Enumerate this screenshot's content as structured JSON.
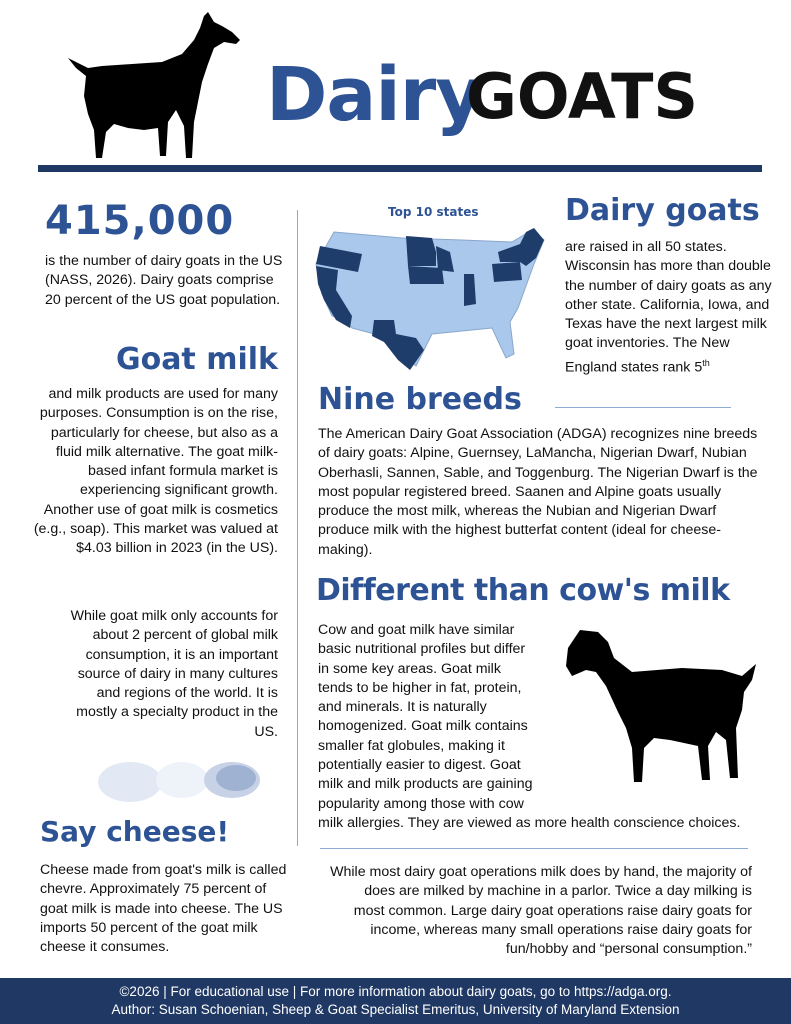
{
  "header": {
    "title_part1": "Dairy",
    "title_part2": "GOATS"
  },
  "stat": {
    "number": "415,000",
    "text": "is the number of dairy goats in the US (NASS, 2026). Dairy goats comprise 20 percent of the US goat population."
  },
  "goat_milk": {
    "heading": "Goat milk",
    "p1": "and milk products are used for many purposes. Consumption is on the rise, particularly for cheese, but also as a fluid milk alternative. The goat milk-based infant formula market is experiencing significant growth.  Another use of goat milk is cosmetics (e.g., soap). This market was valued at $4.03 billion in 2023 (in the US).",
    "p2": "While goat milk only accounts for about 2 percent of global milk consumption, it is an important source of dairy in many cultures and regions of the world.  It is mostly a specialty product in the US."
  },
  "cheese": {
    "heading": "Say cheese!",
    "text": "Cheese made from goat's milk is called chevre. Approximately 75 percent of goat milk is made into cheese. The US imports 50 percent of the goat milk cheese it consumes."
  },
  "map": {
    "title": "Top 10 states",
    "highlight_color": "#1f3d6b",
    "base_color": "#a9c8ec",
    "highlighted_states": [
      "OR",
      "CA",
      "TX",
      "MN",
      "WI",
      "IA",
      "IN",
      "PA",
      "NY",
      "ME",
      "VT",
      "NH",
      "MA",
      "CT"
    ]
  },
  "dairy_goats": {
    "heading": "Dairy goats",
    "text": "are raised in all 50 states. Wisconsin has more than double the number of dairy goats as any other state. California, Iowa, and Texas have the next largest milk goat inventories. The New England states rank 5",
    "sup": "th"
  },
  "breeds": {
    "heading": "Nine breeds",
    "text": "The American Dairy Goat Association (ADGA) recognizes nine breeds of dairy goats: Alpine, Guernsey, LaMancha, Nigerian Dwarf, Nubian Oberhasli, Sannen, Sable, and Toggenburg. The Nigerian Dwarf is the most popular registered breed. Saanen and Alpine goats usually produce the most milk, whereas the Nubian and Nigerian Dwarf produce milk with the highest butterfat content (ideal for cheese-making)."
  },
  "cow": {
    "heading": "Different than cow's milk",
    "text": "Cow and goat milk have similar basic nutritional profiles but differ in some key areas. Goat milk tends to be higher in fat, protein, and minerals. It is naturally homogenized. Goat milk contains smaller fat globules, making it potentially easier to digest. Goat milk and milk products are gaining popularity among those with cow milk allergies. They are viewed as more health conscience choices."
  },
  "milking": {
    "text": "While most dairy goat operations milk does by hand, the majority of does are milked by machine in a parlor. Twice a day  milking is most common. Large dairy goat operations raise dairy goats for income, whereas many small operations raise dairy goats for fun/hobby and “personal consumption.”"
  },
  "footer": {
    "line1": "©2026 | For educational use | For more information about dairy goats, go to https://adga.org.",
    "line2": "Author: Susan Schoenian, Sheep & Goat Specialist Emeritus, University of Maryland Extension"
  }
}
